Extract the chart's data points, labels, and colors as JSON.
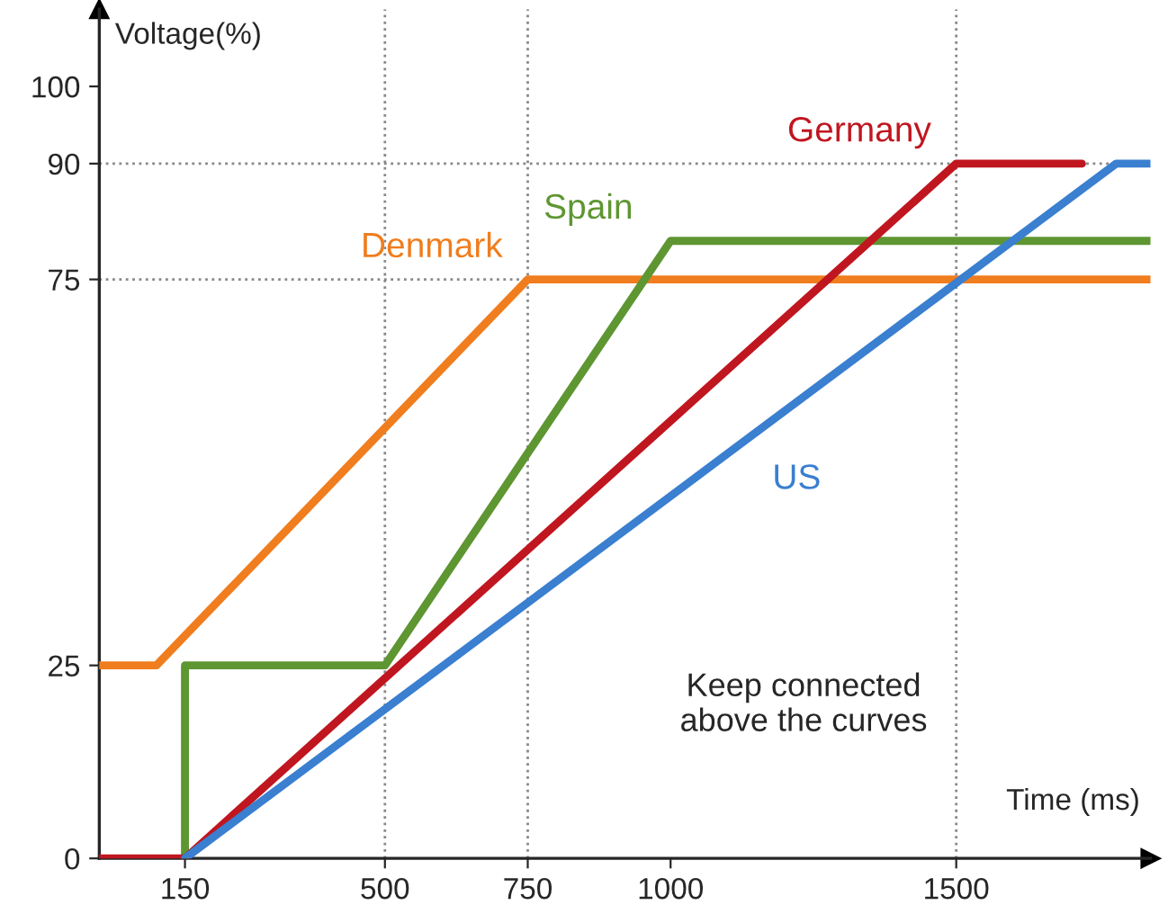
{
  "chart_data": {
    "type": "line",
    "xlabel": "Time (ms)",
    "ylabel": "Voltage(%)",
    "series": [
      {
        "name": "Denmark",
        "color": "#f07d1e",
        "x": [
          0,
          100,
          750,
          1840
        ],
        "values": [
          25,
          25,
          75,
          75
        ]
      },
      {
        "name": "Spain",
        "color": "#5e9632",
        "x": [
          150,
          150,
          500,
          1000,
          1840
        ],
        "values": [
          0,
          25,
          25,
          80,
          80
        ]
      },
      {
        "name": "Germany",
        "color": "#c0161f",
        "x": [
          0,
          150,
          1500,
          1720
        ],
        "values": [
          0,
          0,
          90,
          90
        ]
      },
      {
        "name": "US",
        "color": "#3a7fd0",
        "x": [
          150,
          1780,
          1840
        ],
        "values": [
          0,
          90,
          90
        ]
      }
    ],
    "xlim": [
      0,
      1840
    ],
    "ylim": [
      0,
      110
    ],
    "xticks": [
      150,
      500,
      750,
      1000,
      1500
    ],
    "yticks": [
      0,
      25,
      75,
      90,
      100
    ],
    "ref_lines": [
      {
        "axis": "y",
        "value": 90,
        "color": "#888888",
        "line_style": "dotted"
      },
      {
        "axis": "y",
        "value": 75,
        "color": "#888888",
        "line_style": "dotted"
      },
      {
        "axis": "x",
        "value": 500,
        "color": "#888888",
        "line_style": "dotted"
      },
      {
        "axis": "x",
        "value": 750,
        "color": "#888888",
        "line_style": "dotted"
      },
      {
        "axis": "x",
        "value": 1500,
        "color": "#888888",
        "line_style": "dotted"
      }
    ],
    "annotations": [
      "Keep connected\nabove the curves"
    ],
    "grid": false,
    "legend": false,
    "marker": "none",
    "line_style": "solid"
  }
}
